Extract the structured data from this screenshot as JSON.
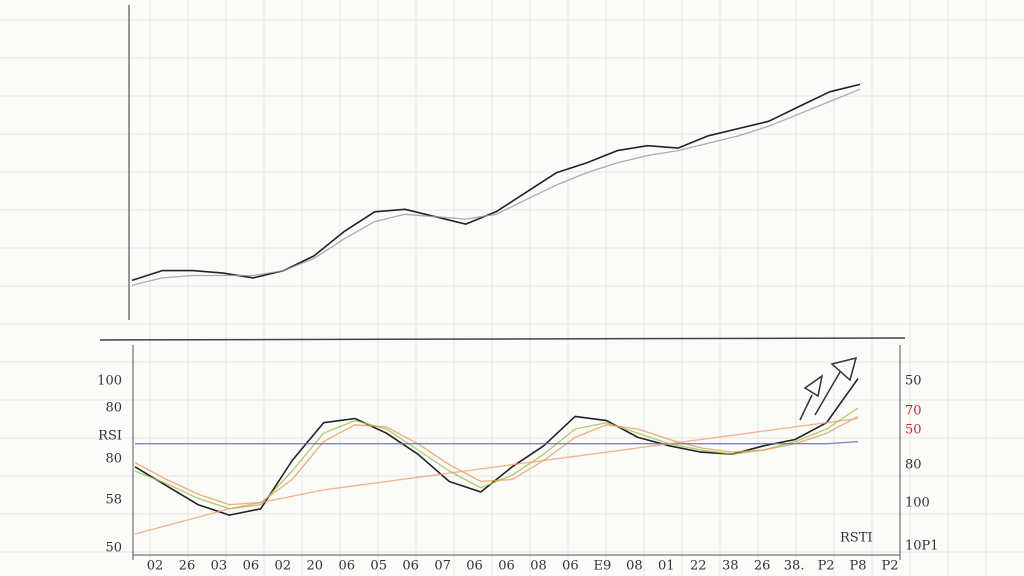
{
  "chart_data": [
    {
      "type": "line",
      "ylim": [
        0,
        100
      ],
      "series": [
        {
          "color": "#222222",
          "values": [
            8,
            12,
            12,
            11,
            9,
            12,
            18,
            28,
            36,
            37,
            34,
            31,
            36,
            44,
            52,
            56,
            61,
            63,
            62,
            67,
            70,
            73,
            79,
            85,
            88
          ]
        },
        {
          "color": "#999999",
          "values": [
            6,
            9,
            10,
            10,
            10,
            12,
            17,
            25,
            32,
            35,
            34,
            33,
            35,
            41,
            47,
            52,
            56,
            59,
            61,
            64,
            67,
            71,
            76,
            81,
            86
          ]
        }
      ]
    },
    {
      "type": "line",
      "ylim": [
        0,
        100
      ],
      "left_labels": [
        "100",
        "80",
        "RSI",
        "80",
        "58",
        "50"
      ],
      "right_labels": [
        "50",
        "70",
        "50",
        "80",
        "100",
        "10P1"
      ],
      "x_labels": [
        "02",
        "26",
        "03",
        "06",
        "02",
        "20",
        "06",
        "05",
        "06",
        "07",
        "06",
        "06",
        "08",
        "06",
        "E9",
        "08",
        "01",
        "22",
        "38",
        "26",
        "38.",
        "P2",
        "P8",
        "P2"
      ],
      "annotation": "RSTI",
      "series": [
        {
          "color": "#222222",
          "values": [
            42,
            33,
            24,
            19,
            22,
            45,
            63,
            65,
            58,
            48,
            35,
            30,
            42,
            52,
            66,
            64,
            56,
            52,
            49,
            48,
            52,
            55,
            63,
            84
          ]
        },
        {
          "color": "#9bbf4a",
          "values": [
            40,
            34,
            27,
            22,
            24,
            40,
            58,
            64,
            60,
            50,
            40,
            32,
            38,
            48,
            60,
            63,
            58,
            53,
            50,
            48,
            50,
            54,
            60,
            70
          ]
        },
        {
          "color": "#e89a58",
          "values": [
            44,
            36,
            29,
            24,
            25,
            36,
            54,
            62,
            61,
            53,
            43,
            35,
            36,
            45,
            56,
            62,
            60,
            55,
            51,
            49,
            50,
            53,
            58,
            66
          ]
        },
        {
          "color": "#5a6aa8",
          "values": [
            53,
            53,
            53,
            53,
            53,
            53,
            53,
            53,
            53,
            53,
            53,
            53,
            53,
            53,
            53,
            53,
            53,
            53,
            53,
            53,
            53,
            53,
            53,
            54
          ]
        },
        {
          "color": "#f0a070",
          "values": [
            10,
            14,
            18,
            22,
            25,
            28,
            31,
            33,
            35,
            37,
            39,
            41,
            43,
            45,
            47,
            49,
            51,
            53,
            55,
            57,
            59,
            61,
            63,
            65
          ]
        }
      ]
    }
  ]
}
